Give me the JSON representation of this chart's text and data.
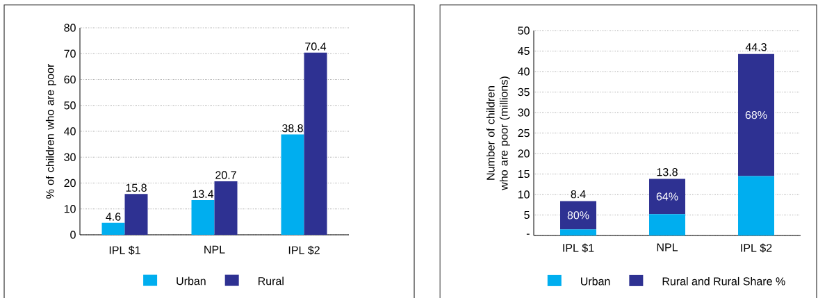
{
  "chart_data": [
    {
      "type": "bar",
      "categories": [
        "IPL $1",
        "NPL",
        "IPL $2"
      ],
      "ylabel": "% of children who are poor",
      "series": [
        {
          "name": "Urban",
          "color": "#00aeef",
          "values": [
            4.6,
            13.4,
            38.8
          ]
        },
        {
          "name": "Rural",
          "color": "#2e3192",
          "values": [
            15.8,
            20.7,
            70.4
          ]
        }
      ],
      "ylim": [
        0,
        80
      ],
      "yticks": [
        0,
        10,
        20,
        30,
        40,
        50,
        60,
        70,
        80
      ],
      "grid": "y",
      "legend": "bottom",
      "data_labels": true
    },
    {
      "type": "bar",
      "stacked": true,
      "categories": [
        "IPL $1",
        "NPL",
        "IPL $2"
      ],
      "ylabel": "Number of children who are poor (millions)",
      "series": [
        {
          "name": "Urban",
          "color": "#00aeef",
          "values": [
            1.5,
            5.2,
            14.5
          ]
        },
        {
          "name": "Rural and Rural Share %",
          "color": "#2e3192",
          "values": [
            6.9,
            8.6,
            29.8
          ]
        }
      ],
      "annotations": [
        "80%",
        "64%",
        "68%"
      ],
      "totals": [
        "8.4",
        "13.8",
        "44.3"
      ],
      "ylim": [
        0,
        50
      ],
      "yticks": [
        {
          "value": 0,
          "label": "-"
        },
        5,
        10,
        15,
        20,
        25,
        30,
        35,
        40,
        45,
        50
      ],
      "grid": "y",
      "legend": "bottom"
    }
  ]
}
